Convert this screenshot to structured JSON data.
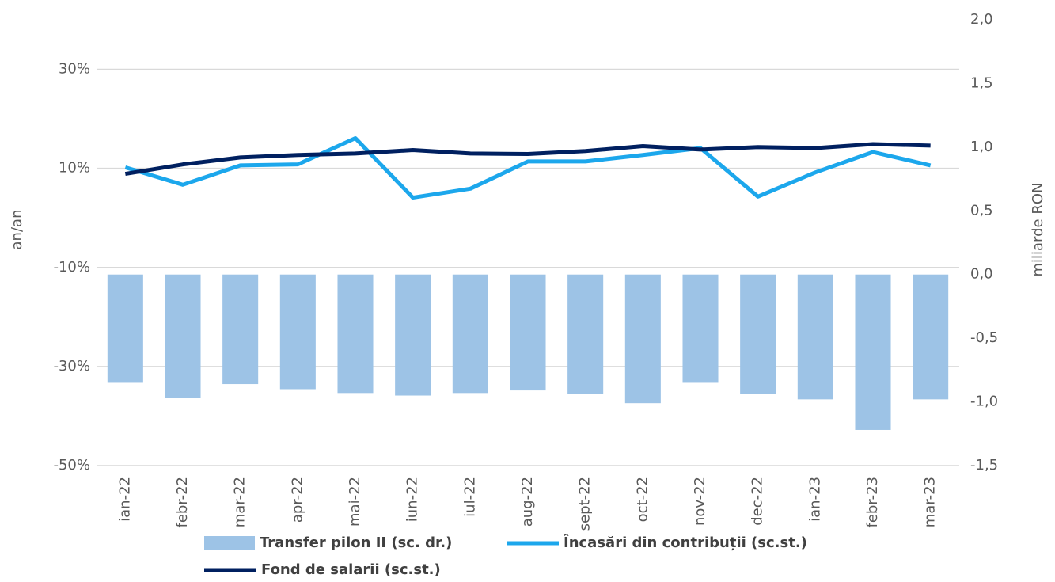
{
  "chart_data": {
    "type": "combo",
    "ylabel": "an/an",
    "y2label": "miliarde RON",
    "categories": [
      "ian-22",
      "febr-22",
      "mar-22",
      "apr-22",
      "mai-22",
      "iun-22",
      "iul-22",
      "aug-22",
      "sept-22",
      "oct-22",
      "nov-22",
      "dec-22",
      "ian-23",
      "febr-23",
      "mar-23"
    ],
    "series": [
      {
        "name": "Transfer pilon II (sc. dr.)",
        "type": "bar",
        "axis": "y2",
        "color": "#9dc3e6",
        "values": [
          -0.85,
          -0.97,
          -0.86,
          -0.9,
          -0.93,
          -0.95,
          -0.93,
          -0.91,
          -0.94,
          -1.01,
          -0.85,
          -0.94,
          -0.98,
          -1.22,
          -0.98
        ]
      },
      {
        "name": "Încasări din contribuții (sc.st.)",
        "type": "line",
        "color": "#1ca7ec",
        "values": [
          10.2,
          6.7,
          10.6,
          10.8,
          16.1,
          4.1,
          5.9,
          11.4,
          11.4,
          12.7,
          14.1,
          4.3,
          9.2,
          13.3,
          10.6
        ]
      },
      {
        "name": "Fond de salarii (sc.st.)",
        "type": "line",
        "color": "#002060",
        "values": [
          8.9,
          10.8,
          12.2,
          12.7,
          13.0,
          13.7,
          13.0,
          12.9,
          13.5,
          14.5,
          13.8,
          14.3,
          14.1,
          14.9,
          14.6
        ]
      }
    ],
    "ylim": [
      -50,
      40
    ],
    "yticks": [
      {
        "value": -50,
        "label": "-50%"
      },
      {
        "value": -30,
        "label": "-30%"
      },
      {
        "value": -10,
        "label": "-10%"
      },
      {
        "value": 10,
        "label": "10%"
      },
      {
        "value": 30,
        "label": "30%"
      }
    ],
    "y2lim": [
      -1.5,
      2.0
    ],
    "y2ticks": [
      {
        "value": -1.5,
        "label": "-1,5"
      },
      {
        "value": -1,
        "label": "-1,0"
      },
      {
        "value": -0.5,
        "label": "-0,5"
      },
      {
        "value": 0,
        "label": "0,0"
      },
      {
        "value": 0.5,
        "label": "0,5"
      },
      {
        "value": 1,
        "label": "1,0"
      },
      {
        "value": 1.5,
        "label": "1,5"
      },
      {
        "value": 2,
        "label": "2,0"
      }
    ],
    "grid": true,
    "legend": "bottom"
  }
}
